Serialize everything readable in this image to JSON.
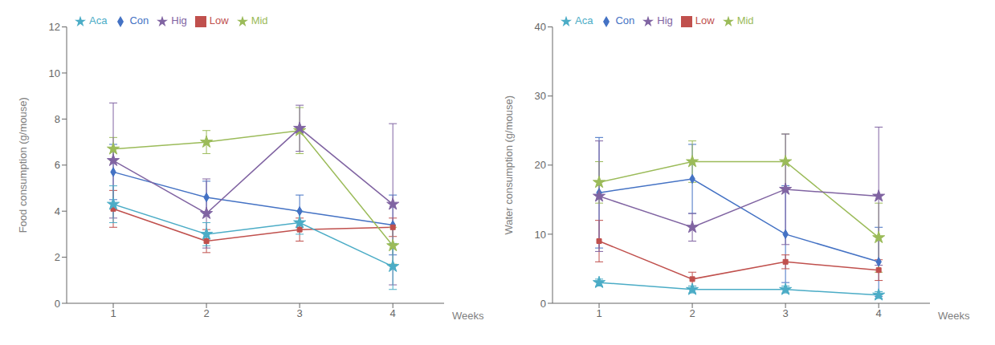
{
  "chart_data": [
    {
      "type": "line",
      "y_label": "Food consumption (g/mouse)",
      "x_label": "Weeks",
      "x": [
        1,
        2,
        3,
        4
      ],
      "xlim": [
        0.5,
        4.55
      ],
      "xticks": [
        1,
        2,
        3,
        4
      ],
      "ylim": [
        0,
        12
      ],
      "yticks": [
        0,
        2,
        4,
        6,
        8,
        10,
        12
      ],
      "grid": false,
      "legend": "upper left",
      "series": [
        {
          "name": "Con",
          "color": "#4472C4",
          "marker": "diamond",
          "values": [
            5.7,
            4.6,
            4.0,
            3.4
          ],
          "err": [
            1.2,
            0.7,
            0.7,
            1.3
          ]
        },
        {
          "name": "Low",
          "color": "#C0504D",
          "marker": "square",
          "values": [
            4.1,
            2.7,
            3.2,
            3.3
          ],
          "err": [
            0.8,
            0.5,
            0.5,
            0.4
          ]
        },
        {
          "name": "Mid",
          "color": "#9BBB59",
          "marker": "star",
          "values": [
            6.7,
            7.0,
            7.5,
            2.5
          ],
          "err": [
            0.5,
            0.5,
            1.0,
            0.8
          ]
        },
        {
          "name": "Hig",
          "color": "#8064A2",
          "marker": "star",
          "values": [
            6.2,
            3.9,
            7.6,
            4.3
          ],
          "err": [
            2.5,
            1.5,
            1.0,
            3.5
          ]
        },
        {
          "name": "Aca",
          "color": "#4BACC6",
          "marker": "star",
          "values": [
            4.3,
            3.0,
            3.5,
            1.6
          ],
          "err": [
            0.8,
            0.5,
            0.5,
            1.0
          ]
        }
      ]
    },
    {
      "type": "line",
      "y_label": "Water consumption (g/mouse)",
      "x_label": "Weeks",
      "x": [
        1,
        2,
        3,
        4
      ],
      "xlim": [
        0.5,
        4.55
      ],
      "xticks": [
        1,
        2,
        3,
        4
      ],
      "ylim": [
        0,
        40
      ],
      "yticks": [
        0,
        10,
        20,
        30,
        40
      ],
      "grid": false,
      "legend": "upper left",
      "series": [
        {
          "name": "Con",
          "color": "#4472C4",
          "marker": "diamond",
          "values": [
            16.0,
            18.0,
            10.0,
            6.0
          ],
          "err": [
            8.0,
            5.0,
            7.0,
            5.0
          ]
        },
        {
          "name": "Low",
          "color": "#C0504D",
          "marker": "square",
          "values": [
            9.0,
            3.5,
            6.0,
            4.8
          ],
          "err": [
            3.0,
            1.0,
            1.0,
            1.5
          ]
        },
        {
          "name": "Mid",
          "color": "#9BBB59",
          "marker": "star",
          "values": [
            17.5,
            20.5,
            20.5,
            9.5
          ],
          "err": [
            3.0,
            3.0,
            4.0,
            5.0
          ]
        },
        {
          "name": "Hig",
          "color": "#8064A2",
          "marker": "star",
          "values": [
            15.5,
            11.0,
            16.5,
            15.5
          ],
          "err": [
            8.0,
            2.0,
            8.0,
            10.0
          ]
        },
        {
          "name": "Aca",
          "color": "#4BACC6",
          "marker": "star",
          "values": [
            3.0,
            2.0,
            2.0,
            1.2
          ],
          "err": [
            0.5,
            0.5,
            0.5,
            0.5
          ]
        }
      ]
    }
  ]
}
